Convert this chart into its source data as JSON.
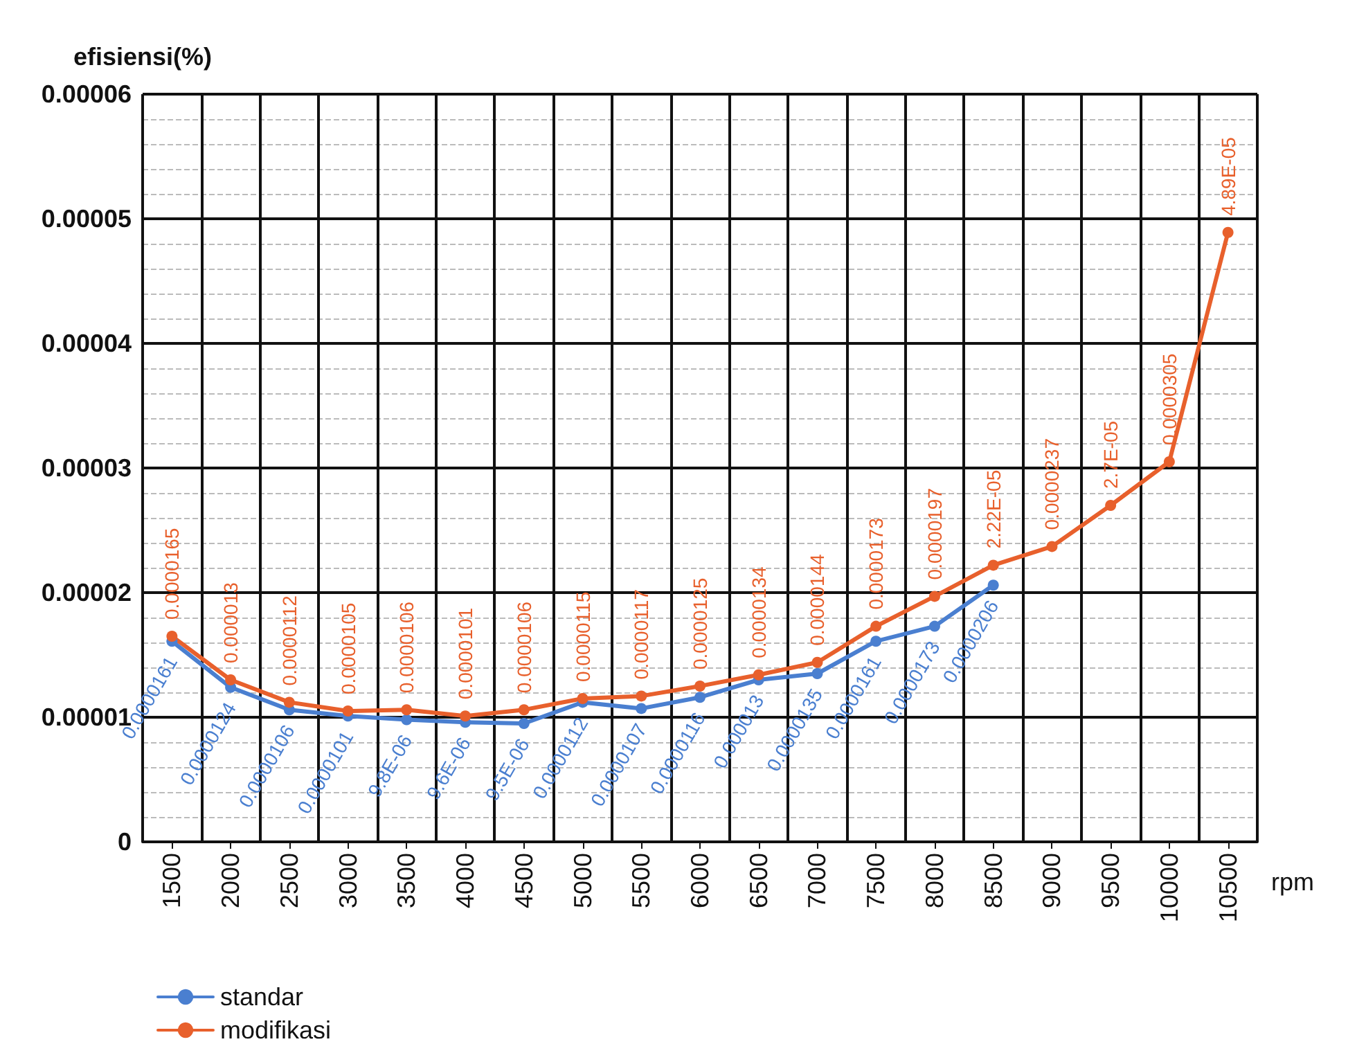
{
  "chart_data": {
    "type": "line",
    "xlabel": "rpm",
    "ylabel": "efisiensi(%)",
    "categories": [
      "1500",
      "2000",
      "2500",
      "3000",
      "3500",
      "4000",
      "4500",
      "5000",
      "5500",
      "6000",
      "6500",
      "7000",
      "7500",
      "8000",
      "8500",
      "9000",
      "9500",
      "10000",
      "10500"
    ],
    "ylim": [
      0,
      6e-05
    ],
    "yticks": [
      0,
      {
        "value": 1e-05,
        "label": "0.00001"
      },
      {
        "value": 2e-05,
        "label": "0.00002"
      },
      {
        "value": 3e-05,
        "label": "0.00003"
      },
      {
        "value": 4e-05,
        "label": "0.00004"
      },
      {
        "value": 5e-05,
        "label": "0.00005"
      },
      {
        "value": 6e-05,
        "label": "0.00006"
      }
    ],
    "grid": true,
    "legend": "bottom left",
    "marker": "circle",
    "line_style": "solid",
    "data_labels": true,
    "series": [
      {
        "name": "standar",
        "color": "#4a7fd0",
        "values": [
          1.61e-05,
          1.24e-05,
          1.06e-05,
          1.01e-05,
          9.8e-06,
          9.6e-06,
          9.5e-06,
          1.12e-05,
          1.07e-05,
          1.16e-05,
          1.3e-05,
          1.35e-05,
          1.61e-05,
          1.73e-05,
          2.06e-05,
          null,
          null,
          null,
          null
        ],
        "value_labels": [
          "0.0000161",
          "0.0000124",
          "0.0000106",
          "0.0000101",
          "9.8E-06",
          "9.6E-06",
          "9.5E-06",
          "0.0000112",
          "0.0000107",
          "0.0000116",
          "0.000013",
          "0.0000135",
          "0.0000161",
          "0.0000173",
          "0.0000206",
          null,
          null,
          null,
          null
        ]
      },
      {
        "name": "modifikasi",
        "color": "#e8602c",
        "values": [
          1.65e-05,
          1.3e-05,
          1.12e-05,
          1.05e-05,
          1.06e-05,
          1.01e-05,
          1.06e-05,
          1.15e-05,
          1.17e-05,
          1.25e-05,
          1.34e-05,
          1.44e-05,
          1.73e-05,
          1.97e-05,
          2.22e-05,
          2.37e-05,
          2.7e-05,
          3.05e-05,
          4.89e-05
        ],
        "value_labels": [
          "0.0000165",
          "0.000013",
          "0.0000112",
          "0.0000105",
          "0.0000106",
          "0.0000101",
          "0.0000106",
          "0.0000115",
          "0.0000117",
          "0.0000125",
          "0.0000134",
          "0.0000144",
          "0.0000173",
          "0.0000197",
          "2.22E-05",
          "0.0000237",
          "2.7E-05",
          "0.0000305",
          "4.89E-05"
        ]
      }
    ]
  }
}
